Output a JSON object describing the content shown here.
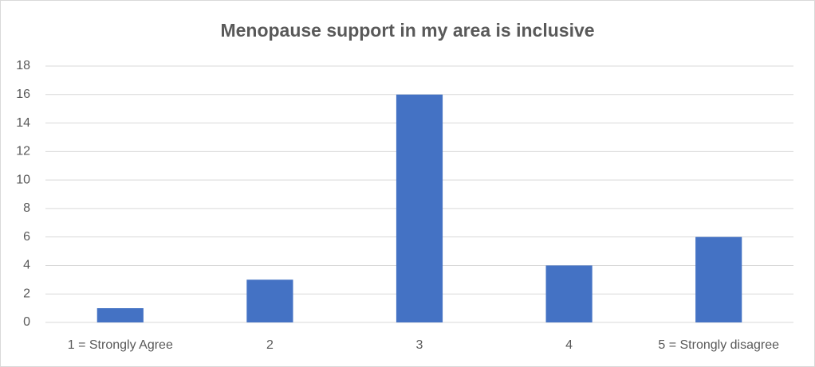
{
  "chart_data": {
    "type": "bar",
    "title": "Menopause support in my area is inclusive",
    "categories": [
      "1 = Strongly Agree",
      "2",
      "3",
      "4",
      "5 = Strongly disagree"
    ],
    "values": [
      1,
      3,
      16,
      4,
      6
    ],
    "color": "#4472c4",
    "ylim": [
      0,
      18
    ],
    "yticks": [
      0,
      2,
      4,
      6,
      8,
      10,
      12,
      14,
      16,
      18
    ],
    "grid": true
  }
}
